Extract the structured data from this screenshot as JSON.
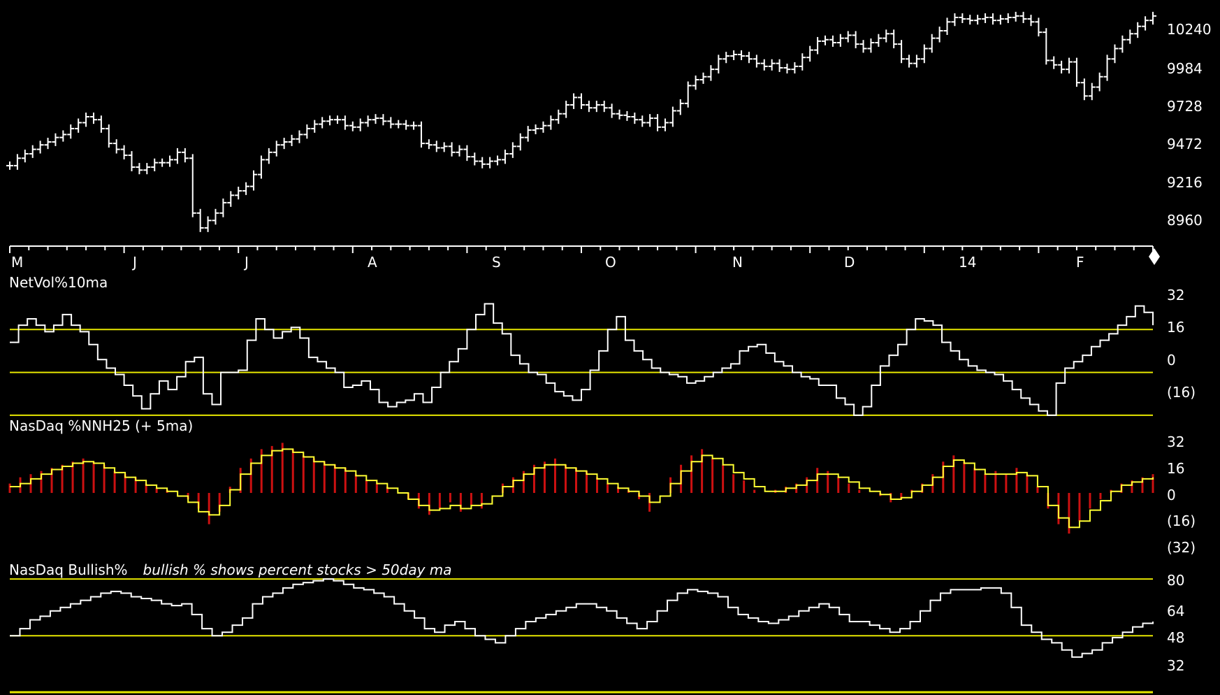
{
  "chart_data": [
    {
      "type": "ohlc",
      "title": "",
      "x_ticks": [
        "M",
        "J",
        "J",
        "A",
        "S",
        "O",
        "N",
        "D",
        "14",
        "F"
      ],
      "y_ticks": [
        "10240",
        "9984",
        "9728",
        "9472",
        "9216",
        "8960"
      ],
      "ylim": [
        8800,
        10390
      ],
      "closes": [
        9310,
        9360,
        9390,
        9420,
        9450,
        9470,
        9500,
        9520,
        9560,
        9600,
        9640,
        9620,
        9560,
        9460,
        9420,
        9380,
        9300,
        9280,
        9300,
        9330,
        9330,
        9350,
        9400,
        9360,
        8990,
        8890,
        8940,
        8990,
        9060,
        9110,
        9140,
        9170,
        9250,
        9350,
        9400,
        9450,
        9470,
        9490,
        9520,
        9560,
        9590,
        9610,
        9620,
        9620,
        9580,
        9570,
        9600,
        9620,
        9630,
        9610,
        9590,
        9590,
        9580,
        9580,
        9460,
        9450,
        9430,
        9440,
        9400,
        9420,
        9370,
        9340,
        9320,
        9340,
        9350,
        9390,
        9440,
        9500,
        9550,
        9560,
        9580,
        9620,
        9660,
        9720,
        9770,
        9720,
        9700,
        9720,
        9700,
        9660,
        9650,
        9640,
        9620,
        9600,
        9630,
        9570,
        9600,
        9680,
        9730,
        9850,
        9890,
        9910,
        9960,
        10030,
        10050,
        10060,
        10050,
        10030,
        10000,
        9980,
        10000,
        9970,
        9960,
        9980,
        10040,
        10090,
        10150,
        10160,
        10140,
        10170,
        10190,
        10130,
        10100,
        10140,
        10170,
        10200,
        10130,
        10030,
        10000,
        10030,
        10100,
        10170,
        10220,
        10280,
        10310,
        10300,
        10290,
        10300,
        10310,
        10290,
        10300,
        10310,
        10320,
        10300,
        10280,
        10210,
        10020,
        9990,
        9960,
        10010,
        9870,
        9780,
        9840,
        9910,
        10030,
        10100,
        10160,
        10200,
        10250,
        10290,
        10320
      ]
    },
    {
      "type": "line",
      "title": "NetVol%10ma",
      "y_ticks": [
        "32",
        "16",
        "0",
        "(16)"
      ],
      "ylim": [
        -22,
        40
      ],
      "reference_lines": [
        20,
        0,
        -20
      ],
      "values": [
        14,
        22,
        25,
        22,
        19,
        22,
        27,
        22,
        19,
        13,
        6,
        2,
        -1,
        -6,
        -11,
        -17,
        -10,
        -4,
        -8,
        -2,
        5,
        7,
        -10,
        -15,
        0,
        0,
        1,
        15,
        25,
        20,
        16,
        19,
        21,
        16,
        7,
        5,
        2,
        0,
        -7,
        -6,
        -4,
        -8,
        -14,
        -16,
        -14,
        -13,
        -10,
        -14,
        -7,
        0,
        5,
        11,
        20,
        27,
        32,
        23,
        18,
        8,
        4,
        0,
        -1,
        -5,
        -9,
        -11,
        -13,
        -8,
        1,
        10,
        20,
        26,
        15,
        10,
        6,
        2,
        0,
        -1,
        -2,
        -5,
        -4,
        -2,
        0,
        2,
        4,
        10,
        12,
        13,
        9,
        5,
        3,
        0,
        -2,
        -3,
        -6,
        -6,
        -12,
        -15,
        -20,
        -16,
        -6,
        3,
        8,
        13,
        20,
        25,
        24,
        22,
        14,
        10,
        6,
        3,
        1,
        0,
        -1,
        -4,
        -8,
        -12,
        -15,
        -18,
        -20,
        -5,
        2,
        5,
        8,
        12,
        15,
        18,
        22,
        26,
        31,
        28,
        22
      ]
    },
    {
      "type": "bar+line",
      "title": "NasDaq %NNH25 (+ 5ma)",
      "y_ticks": [
        "32",
        "16",
        "0",
        "(16)",
        "(32)"
      ],
      "ylim": [
        -38,
        38
      ],
      "reference_lines": [],
      "bars": [
        6,
        10,
        12,
        14,
        16,
        18,
        20,
        22,
        20,
        18,
        14,
        12,
        10,
        6,
        3,
        2,
        0,
        -4,
        -10,
        -20,
        -12,
        4,
        16,
        22,
        28,
        30,
        32,
        28,
        24,
        22,
        20,
        18,
        16,
        12,
        8,
        6,
        4,
        0,
        -4,
        -10,
        -14,
        -10,
        -6,
        -12,
        -8,
        -10,
        0,
        6,
        10,
        14,
        18,
        20,
        22,
        18,
        16,
        14,
        10,
        6,
        4,
        2,
        -4,
        -12,
        0,
        10,
        18,
        24,
        28,
        22,
        18,
        12,
        8,
        2,
        0,
        2,
        4,
        6,
        10,
        16,
        14,
        10,
        6,
        2,
        0,
        -2,
        -6,
        -4,
        2,
        6,
        12,
        20,
        24,
        20,
        16,
        12,
        14,
        12,
        16,
        12,
        4,
        -10,
        -20,
        -26,
        -18,
        -10,
        -4,
        2,
        6,
        8,
        10,
        12
      ],
      "ma": [
        4,
        6,
        9,
        12,
        15,
        17,
        19,
        20,
        19,
        16,
        13,
        10,
        8,
        5,
        3,
        1,
        -2,
        -6,
        -12,
        -14,
        -8,
        2,
        12,
        19,
        24,
        27,
        28,
        26,
        23,
        20,
        18,
        16,
        14,
        11,
        8,
        6,
        3,
        0,
        -4,
        -8,
        -11,
        -10,
        -8,
        -10,
        -8,
        -7,
        -2,
        4,
        8,
        12,
        16,
        18,
        18,
        16,
        14,
        12,
        9,
        6,
        3,
        1,
        -2,
        -6,
        -2,
        6,
        14,
        20,
        24,
        22,
        18,
        13,
        9,
        4,
        1,
        1,
        3,
        5,
        8,
        12,
        12,
        10,
        7,
        3,
        1,
        -1,
        -4,
        -3,
        1,
        5,
        10,
        17,
        21,
        19,
        15,
        12,
        12,
        12,
        13,
        11,
        4,
        -8,
        -16,
        -22,
        -18,
        -11,
        -5,
        1,
        5,
        7,
        9,
        10
      ]
    },
    {
      "type": "line",
      "title": "NasDaq Bullish%",
      "annotation": "bullish % shows percent stocks > 50day ma",
      "y_ticks": [
        "80",
        "64",
        "48",
        "32"
      ],
      "ylim": [
        28,
        84
      ],
      "reference_lines": [
        80,
        48
      ],
      "values": [
        48,
        52,
        57,
        59,
        62,
        64,
        66,
        68,
        70,
        72,
        73,
        72,
        70,
        69,
        68,
        66,
        65,
        66,
        60,
        52,
        48,
        50,
        54,
        58,
        66,
        70,
        72,
        75,
        77,
        78,
        79,
        80,
        79,
        77,
        75,
        74,
        72,
        70,
        66,
        62,
        58,
        52,
        50,
        54,
        56,
        52,
        48,
        46,
        44,
        48,
        52,
        56,
        58,
        60,
        62,
        64,
        66,
        66,
        64,
        62,
        58,
        55,
        52,
        56,
        62,
        68,
        72,
        74,
        73,
        72,
        70,
        64,
        60,
        58,
        56,
        55,
        57,
        59,
        62,
        64,
        66,
        64,
        60,
        56,
        56,
        54,
        52,
        50,
        52,
        56,
        62,
        68,
        72,
        74,
        74,
        74,
        75,
        75,
        72,
        64,
        54,
        50,
        46,
        44,
        40,
        36,
        38,
        40,
        44,
        47,
        50,
        53,
        55,
        56
      ]
    }
  ]
}
